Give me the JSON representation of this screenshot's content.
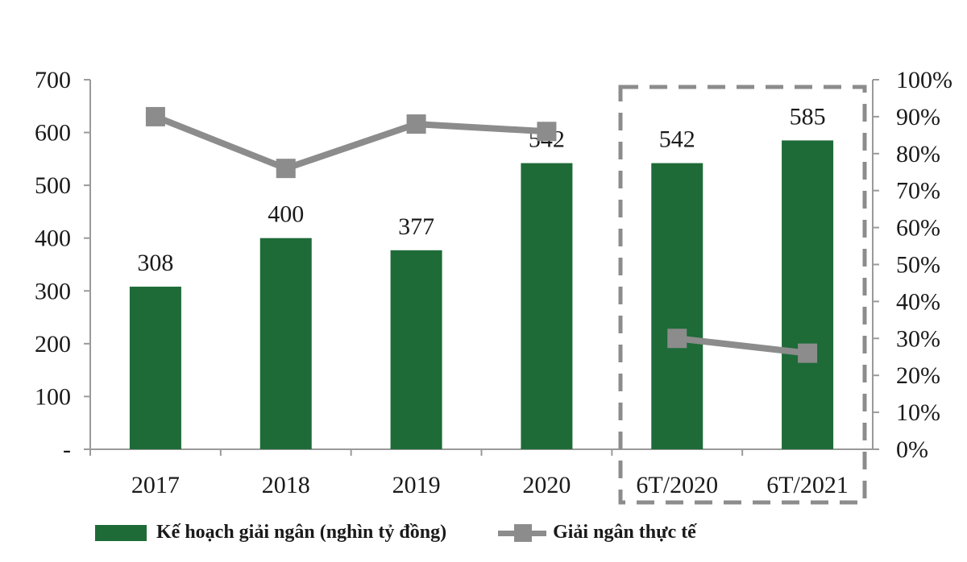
{
  "chart_data": {
    "type": "bar+line",
    "title": "",
    "categories": [
      "2017",
      "2018",
      "2019",
      "2020",
      "6T/2020",
      "6T/2021"
    ],
    "series": [
      {
        "name": "Kế hoạch giải ngân (nghìn tỷ đồng)",
        "type": "bar",
        "axis": "left",
        "color": "#1e6b38",
        "values": [
          308,
          400,
          377,
          542,
          542,
          585
        ],
        "data_labels": [
          "308",
          "400",
          "377",
          "542",
          "542",
          "585"
        ]
      },
      {
        "name": "Giải ngân thực tế",
        "type": "line",
        "axis": "right",
        "color": "#8c8c8c",
        "marker": "square",
        "values_pct": [
          90,
          76,
          88,
          86,
          30,
          26
        ]
      }
    ],
    "left_axis": {
      "ylim": [
        0,
        700
      ],
      "ticks": [
        0,
        100,
        200,
        300,
        400,
        500,
        600,
        700
      ],
      "tick_labels": [
        "-",
        "100",
        "200",
        "300",
        "400",
        "500",
        "600",
        "700"
      ]
    },
    "right_axis": {
      "ylim": [
        0,
        100
      ],
      "ticks": [
        0,
        10,
        20,
        30,
        40,
        50,
        60,
        70,
        80,
        90,
        100
      ],
      "tick_labels": [
        "0%",
        "10%",
        "20%",
        "30%",
        "40%",
        "50%",
        "60%",
        "70%",
        "80%",
        "90%",
        "100%"
      ]
    },
    "xlabel": "",
    "ylabel": "",
    "grid": false,
    "legend_position": "bottom",
    "annotations": [
      {
        "type": "dashed-box",
        "around_categories": [
          "6T/2020",
          "6T/2021"
        ],
        "color": "#8c8c8c"
      }
    ]
  },
  "legend": {
    "bar_label": "Kế hoạch giải ngân (nghìn tỷ đồng)",
    "line_label": "Giải ngân thực tế"
  }
}
